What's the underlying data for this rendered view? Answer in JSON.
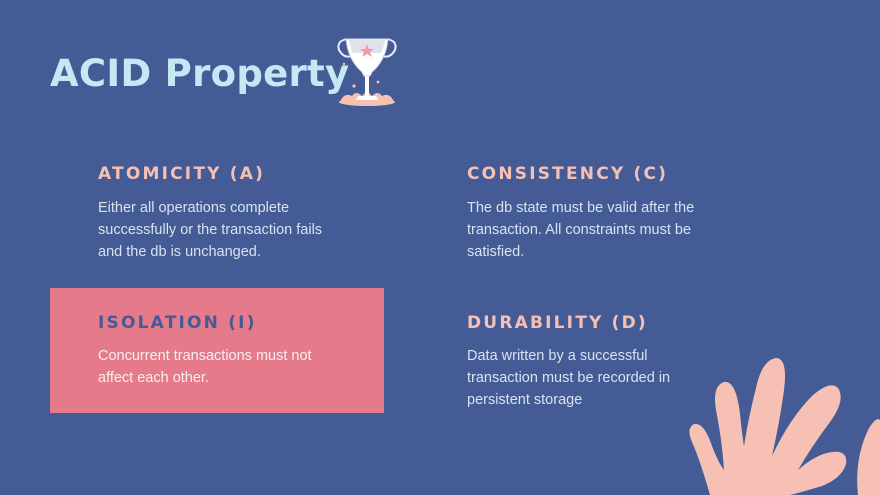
{
  "slide": {
    "title": "ACID Property",
    "colors": {
      "background": "#455b95",
      "title": "#c4e8f4",
      "heading": "#f7c0b4",
      "highlight": "#e57b8a",
      "coral": "#f7c0b4"
    },
    "decorations": [
      "trophy-icon",
      "coral-decoration"
    ],
    "properties": [
      {
        "heading": "ATOMICITY (A)",
        "text": "Either all operations complete\nsuccessfully or the transaction fails\nand the db is unchanged."
      },
      {
        "heading": "CONSISTENCY (C)",
        "text": "The db state must be valid after the\ntransaction. All constraints must be\nsatisfied."
      },
      {
        "heading": "ISOLATION (I)",
        "text": "Concurrent transactions must not\naffect each other.",
        "highlighted": true
      },
      {
        "heading": "DURABILITY (D)",
        "text": "Data written by a successful\ntransaction must be recorded in\npersistent storage"
      }
    ]
  }
}
